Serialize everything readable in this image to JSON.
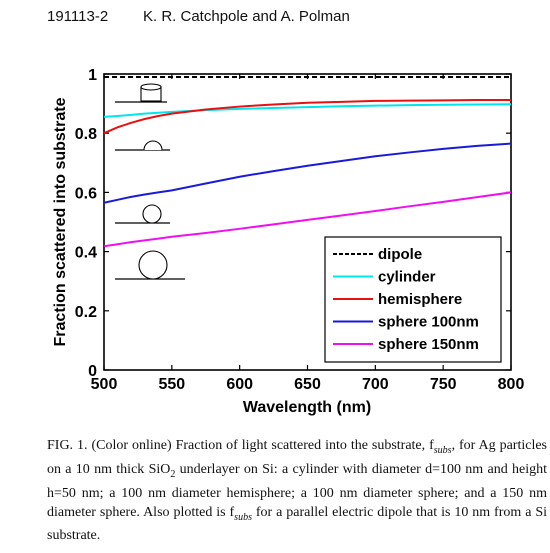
{
  "header": {
    "page_number": "191113-2",
    "authors": "K. R. Catchpole and A. Polman"
  },
  "chart_data": {
    "type": "line",
    "xlabel": "Wavelength (nm)",
    "ylabel": "Fraction scattered into substrate",
    "xlim": [
      500,
      800
    ],
    "ylim": [
      0,
      1
    ],
    "x_ticks": [
      "500",
      "550",
      "600",
      "650",
      "700",
      "750",
      "800"
    ],
    "y_ticks": [
      "0",
      "0.2",
      "0.4",
      "0.6",
      "0.8",
      "1"
    ],
    "grid": false,
    "legend_position": "bottom-right",
    "x": [
      500,
      510,
      520,
      530,
      540,
      550,
      575,
      600,
      625,
      650,
      675,
      700,
      725,
      750,
      775,
      800
    ],
    "series": [
      {
        "name": "dipole",
        "color": "#000000",
        "dash": true,
        "values": [
          0.99,
          0.99,
          0.99,
          0.99,
          0.99,
          0.99,
          0.99,
          0.99,
          0.99,
          0.99,
          0.99,
          0.99,
          0.99,
          0.99,
          0.99,
          0.99
        ]
      },
      {
        "name": "cylinder",
        "color": "#00e5ee",
        "dash": false,
        "values": [
          0.855,
          0.858,
          0.862,
          0.866,
          0.869,
          0.872,
          0.878,
          0.882,
          0.885,
          0.888,
          0.891,
          0.893,
          0.895,
          0.896,
          0.897,
          0.898
        ]
      },
      {
        "name": "hemisphere",
        "color": "#e81010",
        "dash": false,
        "values": [
          0.8,
          0.82,
          0.835,
          0.848,
          0.858,
          0.866,
          0.88,
          0.89,
          0.897,
          0.903,
          0.906,
          0.909,
          0.91,
          0.911,
          0.912,
          0.912
        ]
      },
      {
        "name": "sphere 100nm",
        "color": "#1a1ad9",
        "dash": false,
        "values": [
          0.565,
          0.575,
          0.585,
          0.593,
          0.6,
          0.607,
          0.63,
          0.653,
          0.672,
          0.69,
          0.706,
          0.722,
          0.735,
          0.747,
          0.757,
          0.765
        ]
      },
      {
        "name": "sphere 150nm",
        "color": "#ee10ee",
        "dash": false,
        "values": [
          0.418,
          0.425,
          0.432,
          0.438,
          0.444,
          0.45,
          0.463,
          0.477,
          0.492,
          0.507,
          0.522,
          0.537,
          0.553,
          0.568,
          0.584,
          0.6
        ]
      }
    ]
  },
  "caption": {
    "lines": [
      "FIG. 1. (Color online) Fraction of light scattered into the substrate, f",
      "subs",
      ", for Ag particles on a 10 nm thick SiO",
      "2",
      " underlayer on Si: a cylinder with diameter d=100 nm and height h=50 nm; a 100 nm diameter hemisphere; a 100 nm diameter sphere; and a 150 nm diameter sphere. Also plotted is f",
      "subs",
      " for a parallel electric dipole that is 10 nm from a Si substrate."
    ]
  }
}
